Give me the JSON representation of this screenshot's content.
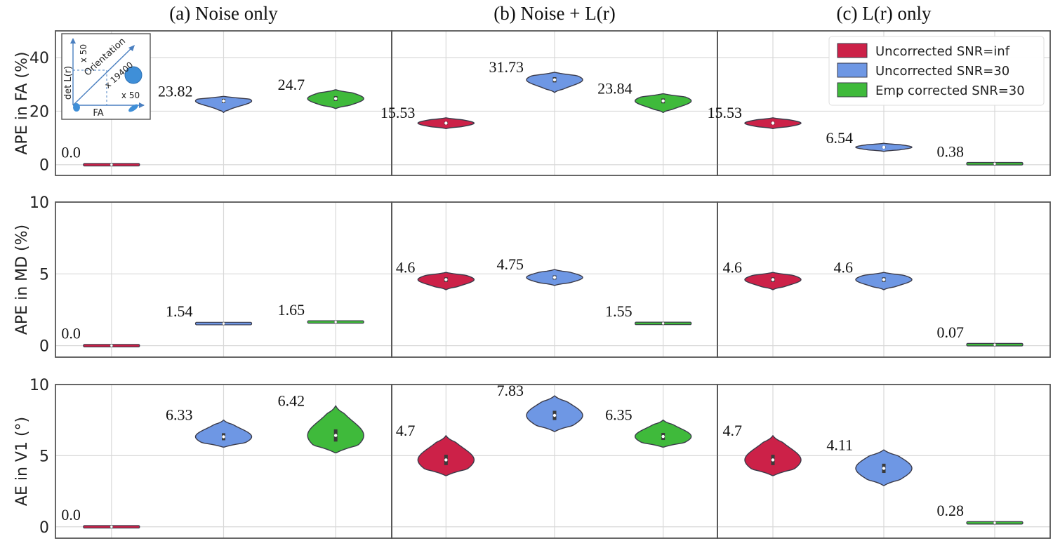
{
  "colors": {
    "uncorrected_inf": "#cc2148",
    "uncorrected_30": "#6e97e4",
    "emp_corrected_30": "#3fba3b",
    "grid": "#d9d9d9",
    "frame": "#555555",
    "violin_edge": "#3b3b4a"
  },
  "legend": {
    "position": "top-right of panel (c) in the first row",
    "items": [
      {
        "label": "Uncorrected SNR=inf",
        "color": "#cc2148"
      },
      {
        "label": "Uncorrected SNR=30",
        "color": "#6e97e4"
      },
      {
        "label": "Emp corrected SNR=30",
        "color": "#3fba3b"
      }
    ]
  },
  "inset": {
    "ylabel": "det L(r)",
    "xlabel": "FA",
    "diag_label": "Orientation",
    "scale_top": "x 50",
    "scale_right": "x 50",
    "scale_diag": "x 19400"
  },
  "chart_data": {
    "type": "violin",
    "grid": true,
    "columns": [
      {
        "title": "(a)  Noise only"
      },
      {
        "title": "(b)  Noise + L(r)"
      },
      {
        "title": "(c)  L(r) only"
      }
    ],
    "series_names": [
      "Uncorrected SNR=inf",
      "Uncorrected SNR=30",
      "Emp corrected SNR=30"
    ],
    "rows": [
      {
        "ylabel": "APE in FA (%)",
        "ylim": [
          -4,
          50
        ],
        "yticks": [
          0,
          20,
          40
        ],
        "panels": [
          {
            "values": [
              0.0,
              23.82,
              24.7
            ],
            "labels": [
              "0.0",
              "23.82",
              "24.7"
            ],
            "spread": [
              [
                0,
                0
              ],
              [
                19.5,
                25.5
              ],
              [
                21,
                28
              ]
            ]
          },
          {
            "values": [
              15.53,
              31.73,
              23.84
            ],
            "labels": [
              "15.53",
              "31.73",
              "23.84"
            ],
            "spread": [
              [
                13.5,
                17.5
              ],
              [
                27,
                34.5
              ],
              [
                19.5,
                26.5
              ]
            ]
          },
          {
            "values": [
              15.53,
              6.54,
              0.38
            ],
            "labels": [
              "15.53",
              "6.54",
              "0.38"
            ],
            "spread": [
              [
                13.5,
                17.5
              ],
              [
                5,
                8
              ],
              [
                0.38,
                0.38
              ]
            ]
          }
        ]
      },
      {
        "ylabel": "APE in MD (%)",
        "ylim": [
          -0.8,
          10
        ],
        "yticks": [
          0,
          5,
          10
        ],
        "panels": [
          {
            "values": [
              0.0,
              1.54,
              1.65
            ],
            "labels": [
              "0.0",
              "1.54",
              "1.65"
            ],
            "spread": [
              [
                0,
                0
              ],
              [
                1.54,
                1.54
              ],
              [
                1.65,
                1.65
              ]
            ]
          },
          {
            "values": [
              4.6,
              4.75,
              1.55
            ],
            "labels": [
              "4.6",
              "4.75",
              "1.55"
            ],
            "spread": [
              [
                3.9,
                5.1
              ],
              [
                4.2,
                5.3
              ],
              [
                1.55,
                1.55
              ]
            ]
          },
          {
            "values": [
              4.6,
              4.6,
              0.07
            ],
            "labels": [
              "4.6",
              "4.6",
              "0.07"
            ],
            "spread": [
              [
                3.9,
                5.1
              ],
              [
                3.9,
                5.1
              ],
              [
                0.07,
                0.07
              ]
            ]
          }
        ]
      },
      {
        "ylabel": "AE in V1 (°)",
        "ylim": [
          -0.8,
          10
        ],
        "yticks": [
          0,
          5,
          10
        ],
        "panels": [
          {
            "values": [
              0.0,
              6.33,
              6.42
            ],
            "labels": [
              "0.0",
              "6.33",
              "6.42"
            ],
            "spread": [
              [
                0,
                0
              ],
              [
                5.6,
                7.5
              ],
              [
                5.2,
                8.5
              ]
            ]
          },
          {
            "values": [
              4.7,
              7.83,
              6.35
            ],
            "labels": [
              "4.7",
              "7.83",
              "6.35"
            ],
            "spread": [
              [
                3.6,
                6.4
              ],
              [
                6.7,
                9.2
              ],
              [
                5.6,
                7.5
              ]
            ]
          },
          {
            "values": [
              4.7,
              4.11,
              0.28
            ],
            "labels": [
              "4.7",
              "4.11",
              "0.28"
            ],
            "spread": [
              [
                3.6,
                6.4
              ],
              [
                2.9,
                5.4
              ],
              [
                0.28,
                0.28
              ]
            ]
          }
        ]
      }
    ]
  }
}
